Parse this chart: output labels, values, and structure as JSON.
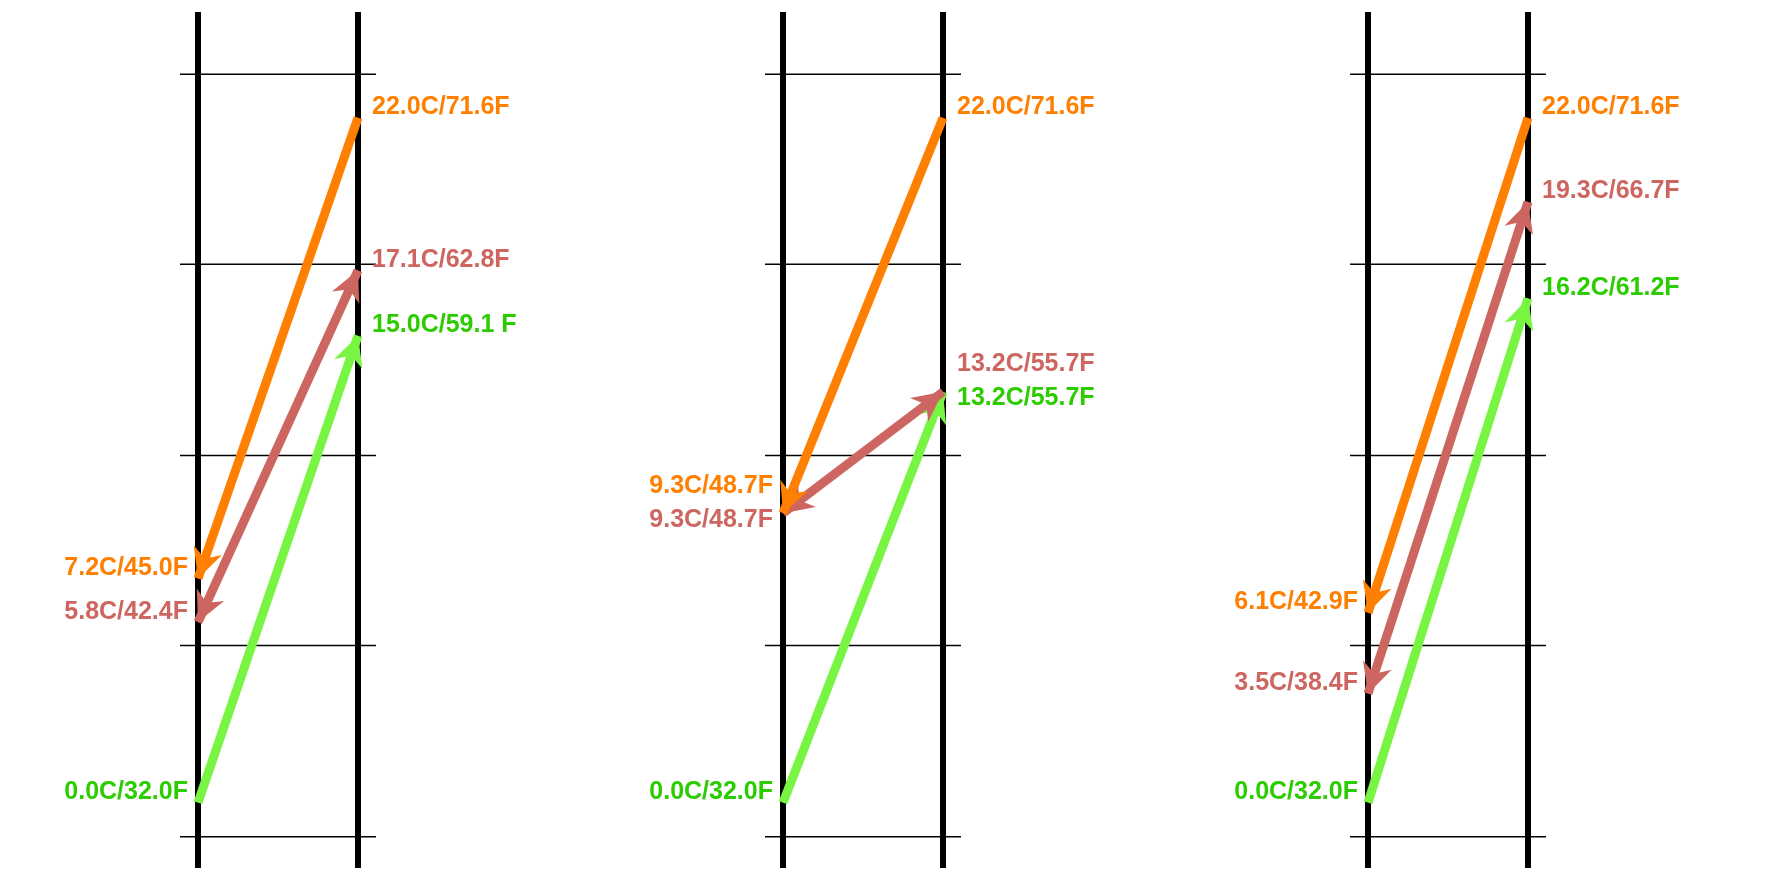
{
  "chart_data": [
    {
      "type": "line",
      "categories": [
        null,
        null
      ],
      "ylim": [
        -2.1,
        25.4
      ],
      "yticks": [
        {
          "value": -1.1,
          "label": null
        },
        {
          "value": 5.05,
          "label": null
        },
        {
          "value": 11.15,
          "label": null
        },
        {
          "value": 17.3,
          "label": null
        },
        {
          "value": 23.4,
          "label": null
        }
      ],
      "grid": "y",
      "series": [
        {
          "color": "#ff7f00",
          "values": [
            7.2,
            22.0
          ],
          "value_labels": [
            "7.2C/45.0F",
            "22.0C/71.6F"
          ]
        },
        {
          "color": "#cd6660",
          "values": [
            5.8,
            17.1
          ],
          "value_labels": [
            "5.8C/42.4F",
            "17.1C/62.8F"
          ]
        },
        {
          "color": "#77f542",
          "values": [
            0.0,
            15.0
          ],
          "value_labels": [
            "0.0C/32.0F",
            "15.0C/59.1 F"
          ]
        }
      ]
    },
    {
      "type": "line",
      "categories": [
        null,
        null
      ],
      "ylim": [
        -2.1,
        25.4
      ],
      "yticks": [
        {
          "value": -1.1,
          "label": null
        },
        {
          "value": 5.05,
          "label": null
        },
        {
          "value": 11.15,
          "label": null
        },
        {
          "value": 17.3,
          "label": null
        },
        {
          "value": 23.4,
          "label": null
        }
      ],
      "grid": "y",
      "series": [
        {
          "color": "#ff7f00",
          "values": [
            9.3,
            22.0
          ],
          "value_labels": [
            "9.3C/48.7F",
            "22.0C/71.6F"
          ]
        },
        {
          "color": "#cd6660",
          "values": [
            9.3,
            13.2
          ],
          "value_labels": [
            "9.3C/48.7F",
            "13.2C/55.7F"
          ]
        },
        {
          "color": "#77f542",
          "values": [
            0.0,
            13.2
          ],
          "value_labels": [
            "0.0C/32.0F",
            "13.2C/55.7F"
          ]
        }
      ]
    },
    {
      "type": "line",
      "categories": [
        null,
        null
      ],
      "ylim": [
        -2.1,
        25.4
      ],
      "yticks": [
        {
          "value": -1.1,
          "label": null
        },
        {
          "value": 5.05,
          "label": null
        },
        {
          "value": 11.15,
          "label": null
        },
        {
          "value": 17.3,
          "label": null
        },
        {
          "value": 23.4,
          "label": null
        }
      ],
      "grid": "y",
      "series": [
        {
          "color": "#ff7f00",
          "values": [
            6.1,
            22.0
          ],
          "value_labels": [
            "6.1C/42.9F",
            "22.0C/71.6F"
          ]
        },
        {
          "color": "#cd6660",
          "values": [
            3.5,
            19.3
          ],
          "value_labels": [
            "3.5C/38.4F",
            "19.3C/66.7F"
          ]
        },
        {
          "color": "#77f542",
          "values": [
            0.0,
            16.2
          ],
          "value_labels": [
            "0.0C/32.0F",
            "16.2C/61.2F"
          ]
        }
      ]
    }
  ]
}
